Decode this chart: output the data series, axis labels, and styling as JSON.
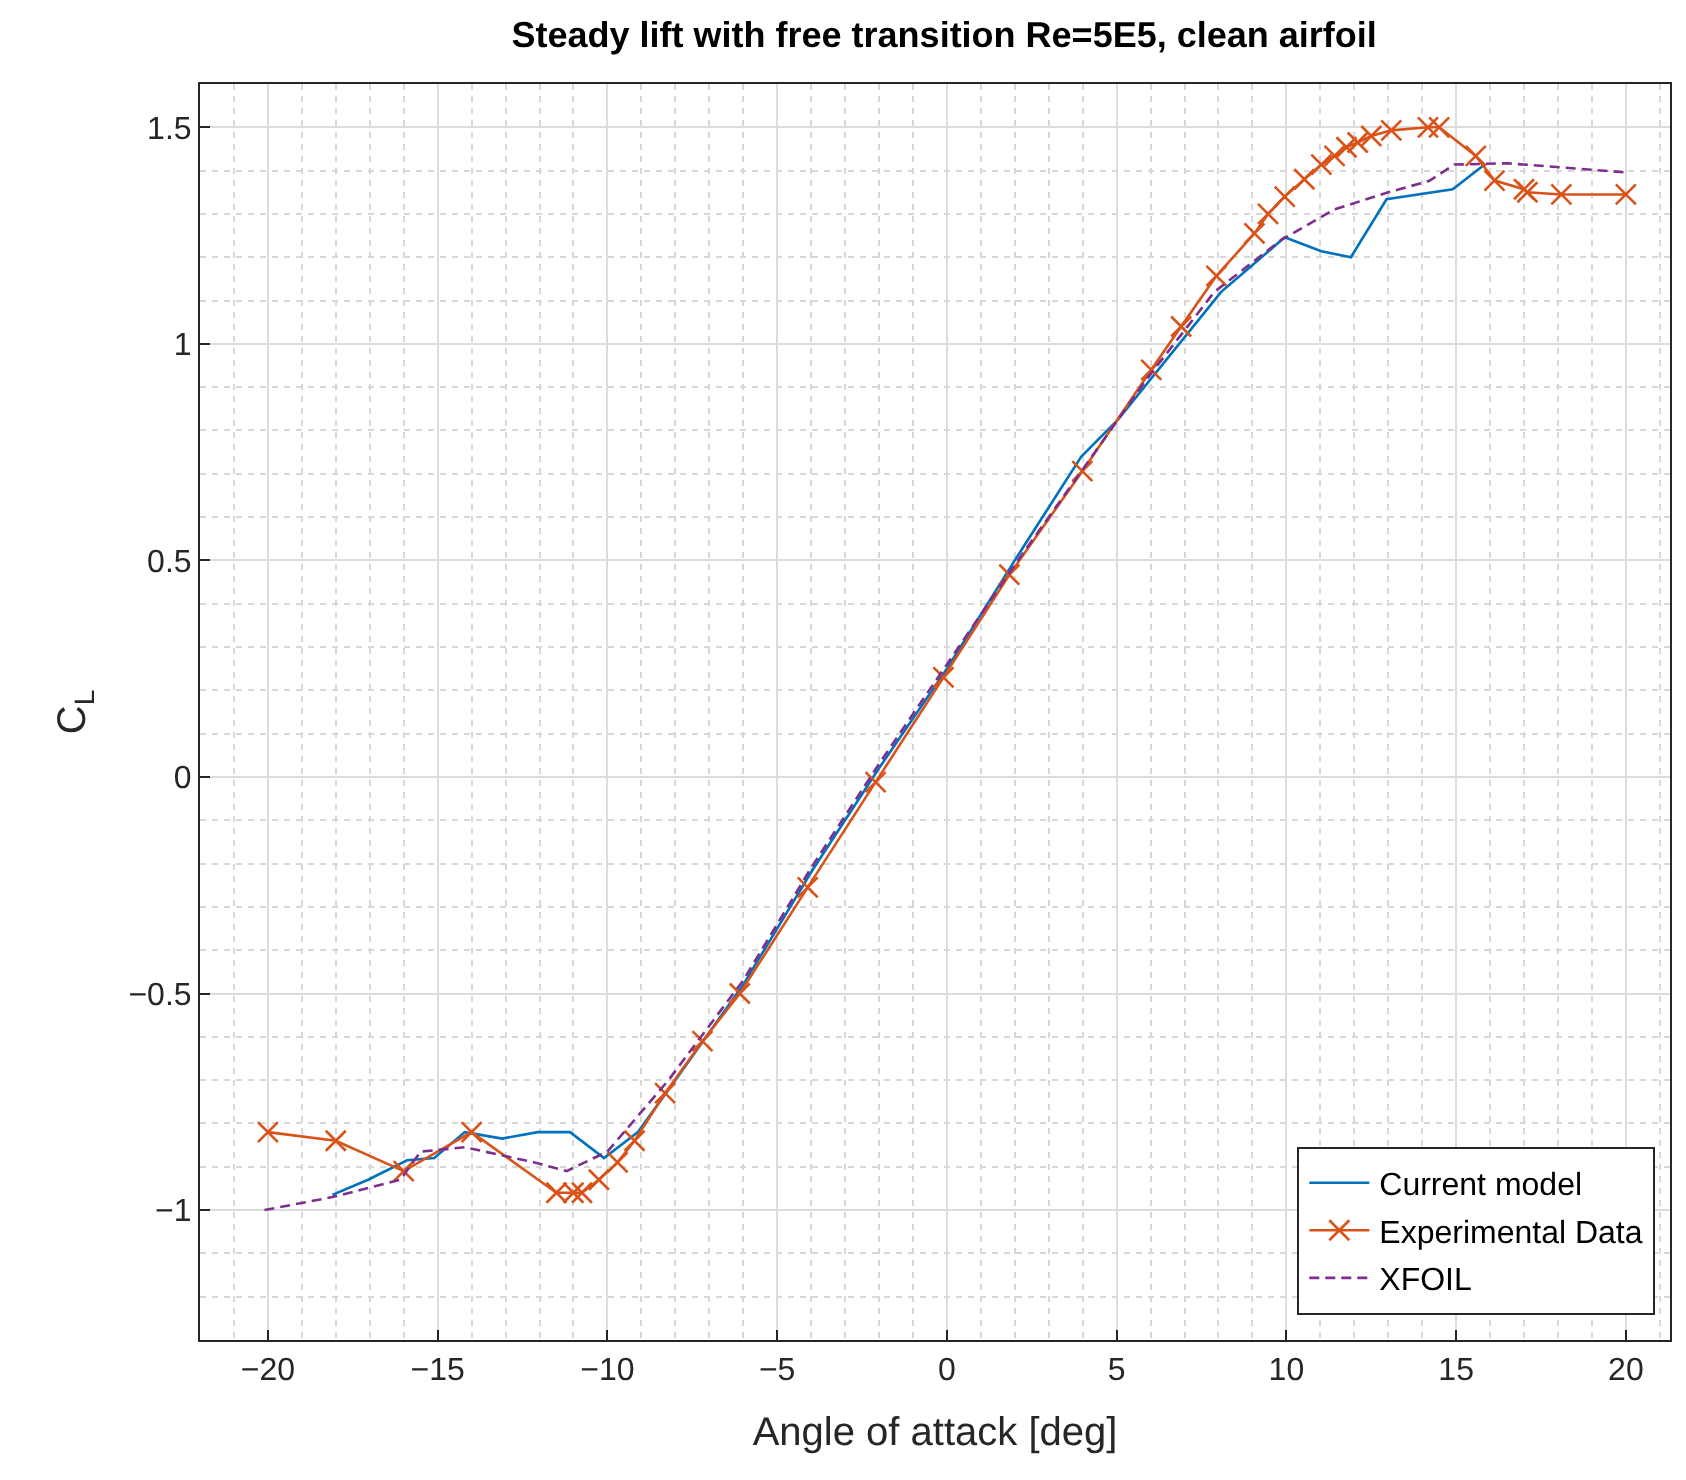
{
  "chart_data": {
    "type": "line",
    "title": "Steady lift with free transition Re=5E5, clean airfoil",
    "xlabel": "Angle of attack [deg]",
    "ylabel": "C$_{L}$",
    "xlim": [
      -22,
      21.3
    ],
    "xticks": [
      -20,
      -15,
      -10,
      -5,
      0,
      5,
      10,
      15,
      20
    ],
    "ylim": [
      -1.3,
      1.6
    ],
    "yticks": [
      -1,
      -0.5,
      0,
      0.5,
      1,
      1.5
    ],
    "grid": true,
    "legend": "bottom right",
    "series": [
      {
        "name": "Current model",
        "color": "#0072bd",
        "marker": "none",
        "line_style": "solid",
        "x": [
          -18.1,
          -17.05,
          -15.9,
          -15.1,
          -14.2,
          -13.1,
          -12.05,
          -11.1,
          -10.1,
          -9.1,
          -8,
          -6,
          -4,
          -2,
          0,
          2,
          3.96,
          5.04,
          8.08,
          8.97,
          9.95,
          11.03,
          11.9,
          12.95,
          14.9,
          15.84
        ],
        "values": [
          -0.965,
          -0.93,
          -0.885,
          -0.88,
          -0.82,
          -0.835,
          -0.82,
          -0.82,
          -0.88,
          -0.82,
          -0.7,
          -0.48,
          -0.22,
          0.02,
          0.25,
          0.5,
          0.74,
          0.825,
          1.12,
          1.18,
          1.246,
          1.214,
          1.2,
          1.334,
          1.357,
          1.414
        ]
      },
      {
        "name": "Experimental Data",
        "color": "#d95319",
        "marker": "cross",
        "line_style": "solid",
        "x": [
          -20,
          -18,
          -16,
          -14,
          -11.5,
          -11,
          -10.75,
          -10.25,
          -9.7,
          -9.2,
          -8.3,
          -7.2,
          -6.1,
          -4.1,
          -2.1,
          -0.1,
          1.84,
          3.99,
          6.02,
          6.9,
          7.94,
          9.06,
          9.46,
          9.95,
          10.53,
          11.03,
          11.42,
          11.77,
          12.1,
          12.5,
          13.09,
          14.17,
          14.5,
          15.58,
          16.13,
          17.0,
          17.1,
          18.1,
          20.0
        ],
        "values": [
          -0.82,
          -0.84,
          -0.91,
          -0.82,
          -0.96,
          -0.96,
          -0.96,
          -0.93,
          -0.89,
          -0.84,
          -0.73,
          -0.61,
          -0.5,
          -0.255,
          -0.012,
          0.23,
          0.467,
          0.706,
          0.94,
          1.04,
          1.157,
          1.255,
          1.3,
          1.34,
          1.38,
          1.414,
          1.434,
          1.454,
          1.465,
          1.48,
          1.493,
          1.5,
          1.5,
          1.434,
          1.377,
          1.357,
          1.35,
          1.345,
          1.345
        ]
      },
      {
        "name": "XFOIL",
        "color": "#7e2f8e",
        "marker": "none",
        "line_style": "dashed",
        "x": [
          -20.1,
          -18.1,
          -16.1,
          -15.5,
          -14.2,
          -12.15,
          -11.2,
          -10,
          -8.2,
          -6,
          -4,
          -2,
          0,
          2,
          4,
          5.9,
          7.88,
          9.85,
          11.4,
          13.0,
          14.2,
          14.95,
          16.5,
          20.0
        ],
        "values": [
          -1.0,
          -0.97,
          -0.93,
          -0.865,
          -0.855,
          -0.89,
          -0.91,
          -0.865,
          -0.7,
          -0.47,
          -0.21,
          0.03,
          0.26,
          0.49,
          0.71,
          0.92,
          1.12,
          1.24,
          1.31,
          1.35,
          1.376,
          1.414,
          1.417,
          1.396
        ]
      }
    ]
  }
}
